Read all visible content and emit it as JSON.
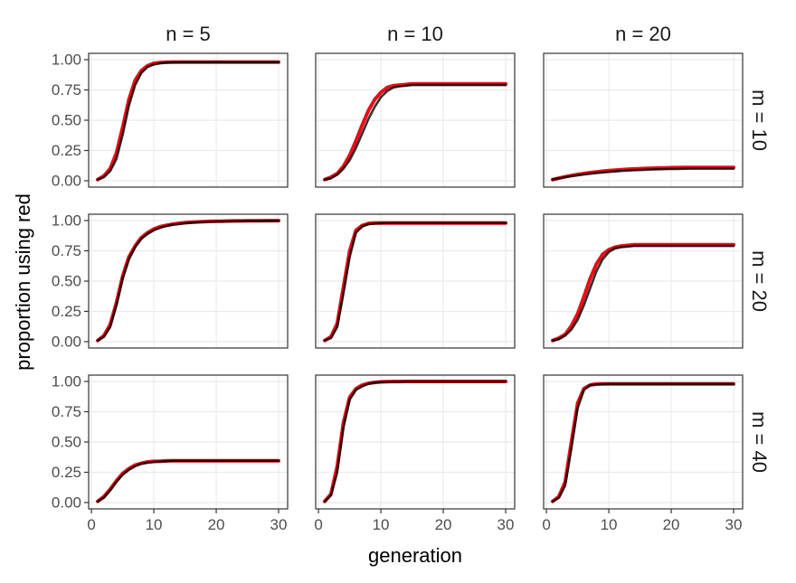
{
  "chart_data": {
    "type": "line",
    "xlabel": "generation",
    "ylabel": "proportion using red",
    "xlim": [
      1,
      30
    ],
    "ylim": [
      0,
      1
    ],
    "xticks": [
      0,
      10,
      20,
      30
    ],
    "xtick_labels": [
      "0",
      "10",
      "20",
      "30"
    ],
    "yticks": [
      0,
      0.25,
      0.5,
      0.75,
      1
    ],
    "ytick_labels": [
      "0.00",
      "0.25",
      "0.50",
      "0.75",
      "1.00"
    ],
    "facet_cols": [
      "n = 5",
      "n = 10",
      "n = 20"
    ],
    "facet_rows": [
      "m = 10",
      "m = 20",
      "m = 40"
    ],
    "grid": true,
    "colors": {
      "simulated": "#000000",
      "model": "#e8000b",
      "panel_border": "#333333",
      "gridline": "#ebebeb"
    },
    "x": [
      1,
      2,
      3,
      4,
      5,
      6,
      7,
      8,
      9,
      10,
      11,
      12,
      13,
      14,
      15,
      16,
      17,
      18,
      19,
      20,
      21,
      22,
      23,
      24,
      25,
      26,
      27,
      28,
      29,
      30
    ],
    "panels": [
      {
        "row": "m = 10",
        "col": "n = 5",
        "black": [
          0.01,
          0.03,
          0.08,
          0.18,
          0.38,
          0.62,
          0.79,
          0.89,
          0.94,
          0.96,
          0.97,
          0.975,
          0.978,
          0.979,
          0.98,
          0.98,
          0.98,
          0.98,
          0.98,
          0.98,
          0.98,
          0.98,
          0.98,
          0.98,
          0.98,
          0.98,
          0.98,
          0.98,
          0.98,
          0.98
        ],
        "red": [
          0.01,
          0.04,
          0.1,
          0.23,
          0.44,
          0.67,
          0.83,
          0.91,
          0.95,
          0.97,
          0.975,
          0.978,
          0.98,
          0.98,
          0.98,
          0.98,
          0.98,
          0.98,
          0.98,
          0.98,
          0.98,
          0.98,
          0.98,
          0.98,
          0.98,
          0.98,
          0.98,
          0.98,
          0.98,
          0.98
        ]
      },
      {
        "row": "m = 10",
        "col": "n = 10",
        "black": [
          0.01,
          0.02,
          0.05,
          0.1,
          0.17,
          0.27,
          0.39,
          0.51,
          0.61,
          0.69,
          0.74,
          0.77,
          0.78,
          0.785,
          0.79,
          0.79,
          0.79,
          0.79,
          0.79,
          0.79,
          0.79,
          0.79,
          0.79,
          0.79,
          0.79,
          0.79,
          0.79,
          0.79,
          0.79,
          0.79
        ],
        "red": [
          0.01,
          0.03,
          0.06,
          0.12,
          0.21,
          0.33,
          0.46,
          0.58,
          0.67,
          0.73,
          0.77,
          0.785,
          0.79,
          0.795,
          0.8,
          0.8,
          0.8,
          0.8,
          0.8,
          0.8,
          0.8,
          0.8,
          0.8,
          0.8,
          0.8,
          0.8,
          0.8,
          0.8,
          0.8,
          0.8
        ]
      },
      {
        "row": "m = 10",
        "col": "n = 20",
        "black": [
          0.01,
          0.02,
          0.03,
          0.038,
          0.045,
          0.052,
          0.058,
          0.064,
          0.069,
          0.073,
          0.077,
          0.081,
          0.084,
          0.087,
          0.089,
          0.091,
          0.093,
          0.095,
          0.096,
          0.097,
          0.098,
          0.099,
          0.1,
          0.1,
          0.1,
          0.1,
          0.1,
          0.1,
          0.1,
          0.1
        ],
        "red": [
          0.01,
          0.022,
          0.033,
          0.043,
          0.052,
          0.06,
          0.067,
          0.073,
          0.079,
          0.084,
          0.088,
          0.092,
          0.095,
          0.098,
          0.1,
          0.102,
          0.104,
          0.106,
          0.107,
          0.108,
          0.109,
          0.11,
          0.11,
          0.11,
          0.11,
          0.11,
          0.11,
          0.11,
          0.11,
          0.11
        ]
      },
      {
        "row": "m = 20",
        "col": "n = 5",
        "black": [
          0.01,
          0.04,
          0.12,
          0.3,
          0.52,
          0.68,
          0.78,
          0.85,
          0.89,
          0.92,
          0.94,
          0.955,
          0.965,
          0.972,
          0.978,
          0.982,
          0.985,
          0.988,
          0.99,
          0.992,
          0.993,
          0.994,
          0.995,
          0.996,
          0.996,
          0.997,
          0.997,
          0.997,
          0.998,
          0.998
        ],
        "red": [
          0.01,
          0.05,
          0.14,
          0.32,
          0.54,
          0.7,
          0.79,
          0.86,
          0.9,
          0.93,
          0.95,
          0.96,
          0.97,
          0.977,
          0.982,
          0.986,
          0.989,
          0.991,
          0.993,
          0.994,
          0.995,
          0.996,
          0.997,
          0.997,
          0.998,
          0.998,
          0.998,
          0.999,
          0.999,
          0.999
        ]
      },
      {
        "row": "m = 20",
        "col": "n = 10",
        "black": [
          0.01,
          0.03,
          0.12,
          0.4,
          0.7,
          0.9,
          0.95,
          0.97,
          0.975,
          0.978,
          0.98,
          0.98,
          0.98,
          0.98,
          0.98,
          0.98,
          0.98,
          0.98,
          0.98,
          0.98,
          0.98,
          0.98,
          0.98,
          0.98,
          0.98,
          0.98,
          0.98,
          0.98,
          0.98,
          0.98
        ],
        "red": [
          0.01,
          0.04,
          0.15,
          0.45,
          0.75,
          0.92,
          0.96,
          0.975,
          0.98,
          0.98,
          0.98,
          0.98,
          0.98,
          0.98,
          0.98,
          0.98,
          0.98,
          0.98,
          0.98,
          0.98,
          0.98,
          0.98,
          0.98,
          0.98,
          0.98,
          0.98,
          0.98,
          0.98,
          0.98,
          0.98
        ]
      },
      {
        "row": "m = 20",
        "col": "n = 20",
        "black": [
          0.01,
          0.02,
          0.05,
          0.1,
          0.18,
          0.3,
          0.44,
          0.58,
          0.68,
          0.74,
          0.77,
          0.78,
          0.785,
          0.79,
          0.79,
          0.79,
          0.79,
          0.79,
          0.79,
          0.79,
          0.79,
          0.79,
          0.79,
          0.79,
          0.79,
          0.79,
          0.79,
          0.79,
          0.79,
          0.79
        ],
        "red": [
          0.01,
          0.03,
          0.06,
          0.13,
          0.23,
          0.37,
          0.52,
          0.64,
          0.72,
          0.76,
          0.78,
          0.79,
          0.795,
          0.8,
          0.8,
          0.8,
          0.8,
          0.8,
          0.8,
          0.8,
          0.8,
          0.8,
          0.8,
          0.8,
          0.8,
          0.8,
          0.8,
          0.8,
          0.8,
          0.8
        ]
      },
      {
        "row": "m = 40",
        "col": "n = 5",
        "black": [
          0.01,
          0.04,
          0.1,
          0.17,
          0.23,
          0.27,
          0.3,
          0.32,
          0.33,
          0.335,
          0.34,
          0.34,
          0.345,
          0.345,
          0.345,
          0.345,
          0.345,
          0.345,
          0.345,
          0.345,
          0.345,
          0.345,
          0.345,
          0.345,
          0.345,
          0.345,
          0.345,
          0.345,
          0.345,
          0.345
        ],
        "red": [
          0.01,
          0.05,
          0.11,
          0.18,
          0.24,
          0.28,
          0.31,
          0.325,
          0.335,
          0.34,
          0.34,
          0.345,
          0.345,
          0.345,
          0.345,
          0.345,
          0.345,
          0.345,
          0.345,
          0.345,
          0.345,
          0.345,
          0.345,
          0.345,
          0.345,
          0.345,
          0.345,
          0.345,
          0.345,
          0.345
        ]
      },
      {
        "row": "m = 40",
        "col": "n = 10",
        "black": [
          0.01,
          0.06,
          0.25,
          0.62,
          0.85,
          0.93,
          0.96,
          0.98,
          0.99,
          0.995,
          0.997,
          0.998,
          0.998,
          0.999,
          0.999,
          0.999,
          0.999,
          0.999,
          0.999,
          0.999,
          0.999,
          0.999,
          0.999,
          0.999,
          0.999,
          0.999,
          0.999,
          0.999,
          0.999,
          0.999
        ],
        "red": [
          0.01,
          0.07,
          0.3,
          0.66,
          0.87,
          0.94,
          0.97,
          0.985,
          0.992,
          0.996,
          0.998,
          0.999,
          0.999,
          1.0,
          1.0,
          1.0,
          1.0,
          1.0,
          1.0,
          1.0,
          1.0,
          1.0,
          1.0,
          1.0,
          1.0,
          1.0,
          1.0,
          1.0,
          1.0,
          1.0
        ]
      },
      {
        "row": "m = 40",
        "col": "n = 20",
        "black": [
          0.01,
          0.04,
          0.14,
          0.45,
          0.78,
          0.93,
          0.97,
          0.975,
          0.978,
          0.98,
          0.98,
          0.98,
          0.98,
          0.98,
          0.98,
          0.98,
          0.98,
          0.98,
          0.98,
          0.98,
          0.98,
          0.98,
          0.98,
          0.98,
          0.98,
          0.98,
          0.98,
          0.98,
          0.98,
          0.98
        ],
        "red": [
          0.01,
          0.05,
          0.17,
          0.5,
          0.82,
          0.94,
          0.97,
          0.978,
          0.98,
          0.98,
          0.98,
          0.98,
          0.98,
          0.98,
          0.98,
          0.98,
          0.98,
          0.98,
          0.98,
          0.98,
          0.98,
          0.98,
          0.98,
          0.98,
          0.98,
          0.98,
          0.98,
          0.98,
          0.98,
          0.98
        ]
      }
    ]
  }
}
